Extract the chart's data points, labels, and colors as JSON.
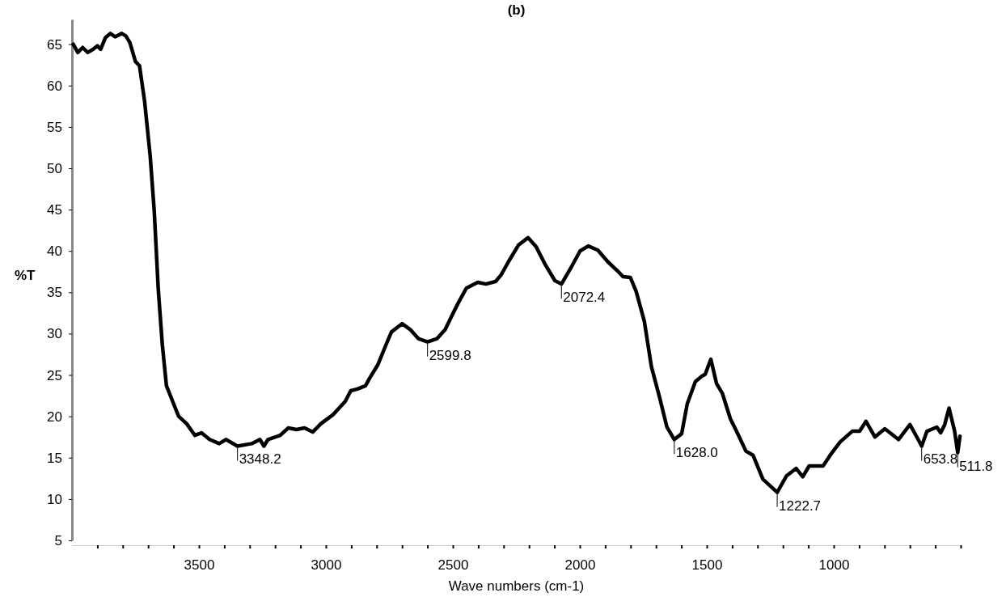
{
  "chart_data": {
    "type": "line",
    "title": "(b)",
    "xlabel": "Wave numbers (cm-1)",
    "ylabel": "%T",
    "xlim": [
      4000,
      500
    ],
    "ylim": [
      5,
      68
    ],
    "xticks": [
      {
        "value": 3900,
        "label": null
      },
      {
        "value": 3800,
        "label": null
      },
      {
        "value": 3700,
        "label": null
      },
      {
        "value": 3600,
        "label": null
      },
      3500,
      {
        "value": 3400,
        "label": null
      },
      {
        "value": 3300,
        "label": null
      },
      {
        "value": 3200,
        "label": null
      },
      {
        "value": 3100,
        "label": null
      },
      3000,
      {
        "value": 2900,
        "label": null
      },
      {
        "value": 2800,
        "label": null
      },
      {
        "value": 2700,
        "label": null
      },
      {
        "value": 2600,
        "label": null
      },
      2500,
      {
        "value": 2400,
        "label": null
      },
      {
        "value": 2300,
        "label": null
      },
      {
        "value": 2200,
        "label": null
      },
      {
        "value": 2100,
        "label": null
      },
      2000,
      {
        "value": 1900,
        "label": null
      },
      {
        "value": 1800,
        "label": null
      },
      {
        "value": 1700,
        "label": null
      },
      {
        "value": 1600,
        "label": null
      },
      1500,
      {
        "value": 1400,
        "label": null
      },
      {
        "value": 1300,
        "label": null
      },
      {
        "value": 1200,
        "label": null
      },
      {
        "value": 1100,
        "label": null
      },
      1000,
      {
        "value": 900,
        "label": null
      },
      {
        "value": 800,
        "label": null
      },
      {
        "value": 700,
        "label": null
      },
      {
        "value": 600,
        "label": null
      },
      {
        "value": 500,
        "label": null
      }
    ],
    "yticks": [
      5,
      10,
      15,
      20,
      25,
      30,
      35,
      40,
      45,
      50,
      55,
      60,
      65
    ],
    "grid": false,
    "marker": "none",
    "line_style": "solid",
    "series": [
      {
        "color": "#000000",
        "x": [
          3995,
          3977,
          3958,
          3938,
          3916,
          3900,
          3887,
          3868,
          3849,
          3830,
          3804,
          3788,
          3772,
          3750,
          3734,
          3714,
          3692,
          3676,
          3660,
          3644,
          3628,
          3606,
          3580,
          3548,
          3516,
          3490,
          3458,
          3420,
          3394,
          3348.2,
          3292,
          3260,
          3244,
          3228,
          3180,
          3148,
          3116,
          3084,
          3052,
          3020,
          2972,
          2924,
          2902,
          2876,
          2844,
          2828,
          2796,
          2764,
          2742,
          2700,
          2668,
          2636,
          2599.8,
          2562,
          2530,
          2502,
          2479,
          2447,
          2402,
          2370,
          2332,
          2310,
          2281,
          2242,
          2204,
          2172,
          2137,
          2098,
          2072.4,
          2038,
          1999,
          1967,
          1929,
          1890,
          1852,
          1830,
          1801,
          1778,
          1746,
          1718,
          1686,
          1657,
          1628,
          1599,
          1577,
          1545,
          1522,
          1506,
          1484,
          1462,
          1439,
          1407,
          1378,
          1346,
          1318,
          1279,
          1222.7,
          1186,
          1148,
          1122,
          1097,
          1042,
          1014,
          975,
          927,
          898,
          873,
          838,
          799,
          745,
          700,
          671,
          653.8,
          633,
          594,
          579,
          563,
          546,
          524,
          511.8,
          503
        ],
        "values": [
          65,
          64,
          64.6,
          64,
          64.4,
          64.8,
          64.4,
          65.8,
          66.3,
          65.9,
          66.3,
          66,
          65.2,
          62.9,
          62.4,
          58.1,
          51.5,
          44.8,
          35.3,
          28.6,
          23.7,
          22,
          20,
          19.1,
          17.7,
          18,
          17.2,
          16.7,
          17.2,
          16.4,
          16.7,
          17.2,
          16.4,
          17.2,
          17.7,
          18.6,
          18.4,
          18.6,
          18.1,
          19.1,
          20.2,
          21.8,
          23.1,
          23.3,
          23.7,
          24.6,
          26.2,
          28.6,
          30.2,
          31.2,
          30.5,
          29.4,
          29,
          29.4,
          30.5,
          32.3,
          33.7,
          35.5,
          36.2,
          36,
          36.3,
          37.1,
          38.7,
          40.7,
          41.6,
          40.5,
          38.4,
          36.4,
          36,
          37.8,
          40,
          40.6,
          40.1,
          38.7,
          37.6,
          36.9,
          36.8,
          35.1,
          31.5,
          26,
          22.3,
          18.7,
          17.2,
          17.9,
          21.5,
          24.2,
          24.8,
          25.1,
          26.9,
          24,
          22.8,
          19.7,
          17.9,
          15.8,
          15.3,
          12.4,
          10.8,
          12.8,
          13.7,
          12.7,
          14,
          14,
          15.3,
          16.9,
          18.2,
          18.2,
          19.4,
          17.5,
          18.5,
          17.2,
          19,
          17.4,
          16.4,
          18.2,
          18.7,
          18,
          19,
          21,
          18.2,
          15.6,
          17.6
        ]
      }
    ],
    "annotations": [
      {
        "text": "3348.2",
        "x": 3348.2,
        "y": 16.4
      },
      {
        "text": "2599.8",
        "x": 2599.8,
        "y": 29
      },
      {
        "text": "2072.4",
        "x": 2072.4,
        "y": 36
      },
      {
        "text": "1628.0",
        "x": 1628,
        "y": 17.2
      },
      {
        "text": "1222.7",
        "x": 1222.7,
        "y": 10.8
      },
      {
        "text": "653.8",
        "x": 653.8,
        "y": 16.4
      },
      {
        "text": "511.8",
        "x": 511.8,
        "y": 15.6
      }
    ]
  }
}
